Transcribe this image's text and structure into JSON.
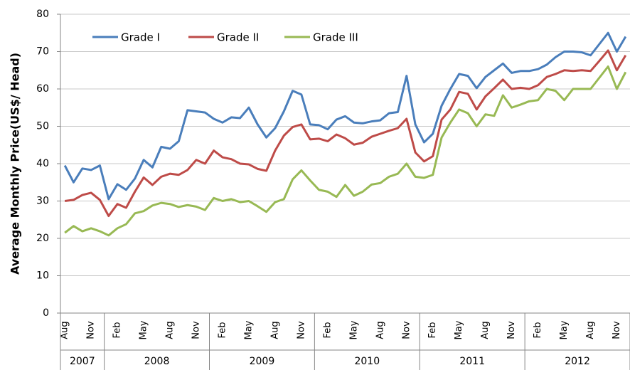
{
  "chart_data": {
    "type": "line",
    "y_label": "Average Monthly Price(US$/ Head)",
    "categories": [
      "Aug",
      null,
      null,
      "Nov",
      null,
      null,
      "Feb",
      null,
      null,
      "May",
      null,
      null,
      "Aug",
      null,
      null,
      "Nov",
      null,
      null,
      "Feb",
      null,
      null,
      "May",
      null,
      null,
      "Aug",
      null,
      null,
      "Nov",
      null,
      null,
      "Feb",
      null,
      null,
      "May",
      null,
      null,
      "Aug",
      null,
      null,
      "Nov",
      null,
      null,
      "Feb",
      null,
      null,
      "May",
      null,
      null,
      "Aug",
      null,
      null,
      "Nov",
      null,
      null,
      "Feb",
      null,
      null,
      "May",
      null,
      null,
      "Aug",
      null,
      null,
      "Nov",
      null
    ],
    "x_groups": [
      {
        "label": "2007",
        "span": 5
      },
      {
        "label": "2008",
        "span": 12
      },
      {
        "label": "2009",
        "span": 12
      },
      {
        "label": "2010",
        "span": 12
      },
      {
        "label": "2011",
        "span": 12
      },
      {
        "label": "2012",
        "span": 12
      }
    ],
    "series": [
      {
        "name": "Grade I",
        "color": "#4a7ebb",
        "values": [
          39.5,
          35,
          38.7,
          38.3,
          39.5,
          30.5,
          34.5,
          33,
          36,
          41,
          39,
          44.5,
          44,
          46,
          54.3,
          54,
          53.7,
          52,
          51,
          52.4,
          52.2,
          55,
          50.5,
          47,
          49.5,
          54,
          59.5,
          58.5,
          50.5,
          50.3,
          49.2,
          51.8,
          52.7,
          51,
          50.8,
          51.3,
          51.6,
          53.5,
          53.8,
          63.5,
          50.5,
          45.7,
          48,
          55.5,
          60,
          64,
          63.5,
          60.2,
          63.2,
          65,
          66.8,
          64.3,
          64.8,
          64.8,
          65.3,
          66.5,
          68.5,
          70,
          70,
          69.8,
          69,
          72,
          75,
          70,
          74
        ]
      },
      {
        "name": "Grade II",
        "color": "#be4b48",
        "values": [
          30,
          30.3,
          31.6,
          32.2,
          30.3,
          26,
          29.2,
          28.2,
          32.5,
          36.3,
          34.3,
          36.5,
          37.3,
          37,
          38.3,
          41,
          40,
          43.5,
          41.7,
          41.2,
          40,
          39.8,
          38.6,
          38.1,
          43.5,
          47.5,
          49.8,
          50.5,
          46.5,
          46.7,
          46,
          47.8,
          46.8,
          45.1,
          45.6,
          47.2,
          48,
          48.8,
          49.5,
          52,
          43,
          40.6,
          42,
          51.8,
          54.5,
          59.2,
          58.7,
          54.5,
          58,
          60.2,
          62.5,
          60,
          60.3,
          60,
          61,
          63.2,
          64,
          65,
          64.8,
          65,
          64.8,
          67.5,
          70.3,
          65,
          69
        ]
      },
      {
        "name": "Grade III",
        "color": "#98b954",
        "values": [
          21.5,
          23.3,
          21.9,
          22.7,
          21.9,
          20.8,
          22.7,
          23.8,
          26.7,
          27.3,
          28.8,
          29.5,
          29.2,
          28.4,
          28.9,
          28.5,
          27.6,
          30.8,
          30,
          30.5,
          29.7,
          30,
          28.6,
          27.1,
          29.7,
          30.5,
          35.8,
          38.2,
          35.5,
          33,
          32.5,
          31.1,
          34.3,
          31.4,
          32.5,
          34.4,
          34.8,
          36.5,
          37.3,
          40,
          36.5,
          36.2,
          37,
          47,
          51,
          54.5,
          53.5,
          50,
          53.2,
          52.8,
          58.3,
          55,
          55.8,
          56.7,
          57,
          60,
          59.5,
          57,
          60,
          60,
          60,
          63,
          66,
          60,
          64.5
        ]
      }
    ],
    "ylim": [
      0,
      80
    ],
    "yticks": [
      0,
      10,
      20,
      30,
      40,
      50,
      60,
      70,
      80
    ],
    "grid": true,
    "legend": "top-left"
  }
}
